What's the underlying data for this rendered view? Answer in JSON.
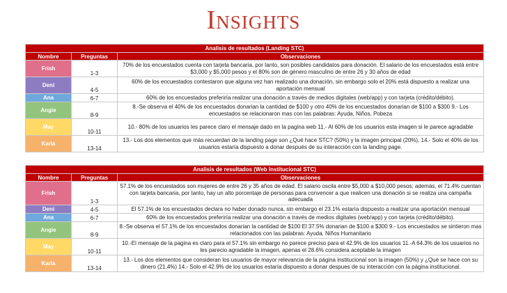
{
  "page_title": "Insights",
  "colors": {
    "header_red": "#c00000",
    "Frish": "#e06f8b",
    "Deni": "#8e7cc3",
    "Ana": "#6fa8dc",
    "Angie": "#93c47d",
    "May": "#ffd966",
    "Karla": "#f6b26b"
  },
  "tables": [
    {
      "caption": "Analisis de resultados (Landing STC)",
      "headers": {
        "nombre": "Nombre",
        "preguntas": "Preguntas",
        "observaciones": "Observaciones"
      },
      "rows": [
        {
          "name": "Frish",
          "preguntas": "1-3",
          "obs": "70% de los encuestados cuenta con tarjeta bancaria, por tanto, son posibles candidatos para donación. El salario de los encuestados está entre $3,000 y $5,000 pesos y el 80% son de género masculino de entre 26 y 30 años de edad"
        },
        {
          "name": "Deni",
          "preguntas": "4-5",
          "obs": "60% de los encuestados contestaron que alguna vez han realizado una donación, sin embargo solo el 20% está dispuesto a realizar una aportación mensual"
        },
        {
          "name": "Ana",
          "preguntas": "6-7",
          "obs": "60% de los encuestados preferiría realizar una donación a través de medios digitales (web/app) y con tarjeta (crédito/débito)."
        },
        {
          "name": "Angie",
          "preguntas": "8-9",
          "obs": "8.-Se observa el 40% de los encuestados donarian  la cantidad de $100 y otro 40% de los encuestados donarian de $100 a $300 9.- Los encuestados se relacionaron mas con las palabras: Ayuda, Niños, Pobeza"
        },
        {
          "name": "May",
          "preguntas": "10-11",
          "obs": "10.- 80% de los usuarios les parece claro el mensaje dado en la pagina web  11.- Al 60% de los usuarios esta imagen si le parece agradable"
        },
        {
          "name": "Karla",
          "preguntas": "13-14",
          "obs": "13.- Los dos elementos que más recuerdan de la landing page son ¿Qué hace STC? (50%) y la imagen principal (20%), 14.- Solo el 40% de los usuarios estaría dispuesto a donar después de su interacción con la landing page."
        }
      ]
    },
    {
      "caption": "Analisis de resultados (Web Institucional STC)",
      "headers": {
        "nombre": "Nombre",
        "preguntas": "Preguntas",
        "observaciones": "Observaciones"
      },
      "rows": [
        {
          "name": "Frish",
          "preguntas": "1-3",
          "obs": "57.1% de los encuestados son mujeres de entre 26 y 35 años de edad. El salario oscila entre $5,000 a $10,000 pesos; además, el 71.4% cuentan con tarjeta bancaria, por tanto, hay un alto porcentaje de personas para convencer a que realicen una donación si se realiza una campaña adecuada"
        },
        {
          "name": "Deni",
          "preguntas": "4-5",
          "obs": "El 57.1% de los encuestados declara no haber donado nunca, sin embargo el 23.1% estaría dispuesto a realizar una aportación mensual"
        },
        {
          "name": "Ana",
          "preguntas": "6-7",
          "obs": "60% de los encuestados preferiría realizar una donación a través de medios digitales (web/app) y con tarjeta (crédito/débito)."
        },
        {
          "name": "Angie",
          "preguntas": "8-9",
          "obs": "8.-Se observa el 57.1% de los encuestados donarian  la cantidad de $100  El 37.5%  donarian de $100 a $300 9.- Los encuestados se sintieron mas relacionados con las palabras: Ayuda, Niños Humanitario"
        },
        {
          "name": "May",
          "preguntas": "10-11",
          "obs": "10.-El mensaje de la pagina es claro para el  57.1% sin embargo no parece  preciso para el 42.9% de los usuarios  11.-A 64.3% de los usuarios no les parecio agradable la imagen, apenas el 28.6% considera aceptable la imagen"
        },
        {
          "name": "Karla",
          "preguntas": "13-14",
          "obs": "13.- Los dos elementos que consideran los usuarios de mayor relevancia de la página institucional son la imagen (50%) y ¿Qué se hace con su dinero (21.4%) 14.- Solo el 42.9% de los usuarios estaría dispuesto a donar despues de su interacción con la página institucional."
        }
      ]
    }
  ]
}
